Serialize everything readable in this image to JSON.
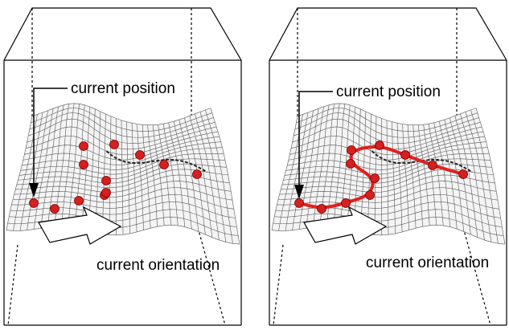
{
  "panels": [
    {
      "id": "left",
      "position_label": "current position",
      "orientation_label": "current orientation",
      "shows_path": false
    },
    {
      "id": "right",
      "position_label": "current position",
      "orientation_label": "current orientation",
      "shows_path": true
    }
  ],
  "colors": {
    "frame": "#000000",
    "mesh": "#5a5a5a",
    "mesh_fill": "#f4f4f4",
    "waypoint": "#d61f1f",
    "waypoint_outline": "#7a0000",
    "path": "#e02020",
    "arrow_fill": "#ffffff"
  }
}
